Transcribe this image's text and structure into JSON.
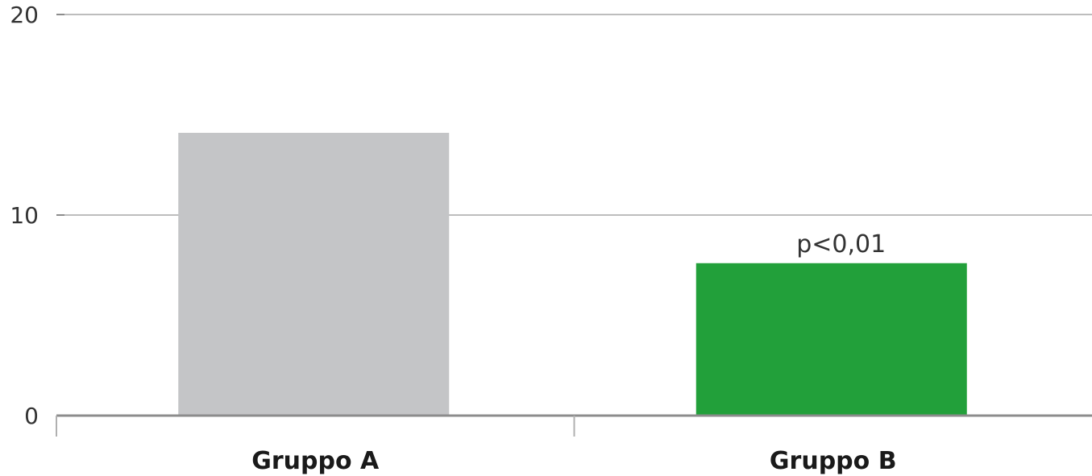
{
  "chart_data": {
    "type": "bar",
    "categories": [
      "Gruppo A",
      "Gruppo B"
    ],
    "values": [
      14.1,
      7.6
    ],
    "colors": [
      "#c4c5c7",
      "#22a03a"
    ],
    "ylim": [
      0,
      20
    ],
    "yticks": [
      "0",
      "10",
      "20"
    ],
    "grid": true,
    "annotations": [
      {
        "category": "Gruppo B",
        "text": "p<0,01"
      }
    ],
    "title": "",
    "xlabel": "",
    "ylabel": ""
  }
}
